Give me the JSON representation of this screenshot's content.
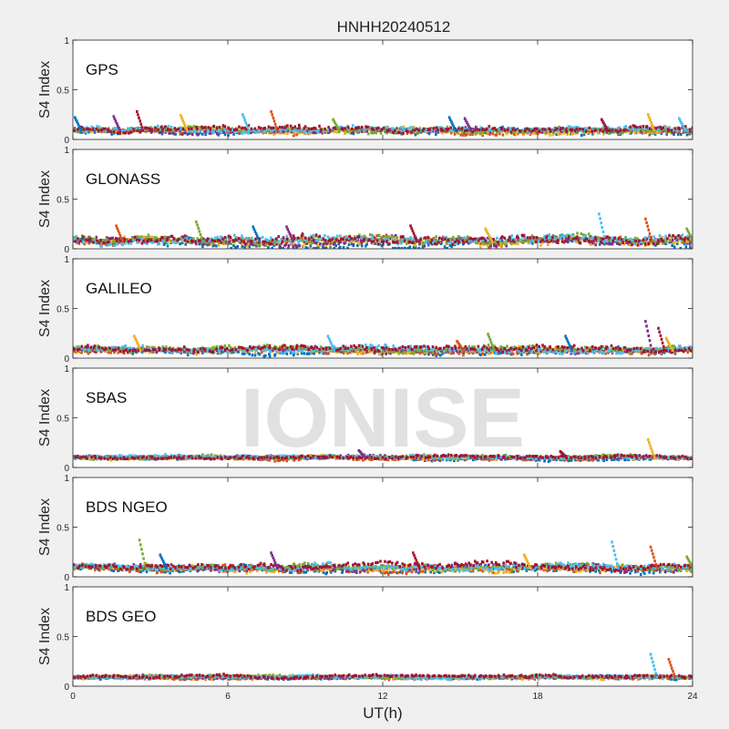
{
  "figure": {
    "title": "HNHH20240512",
    "xlabel": "UT(h)",
    "watermark": "IONISE",
    "background_color": "#f0f0f0",
    "axes_color": "#ffffff"
  },
  "chart_data": {
    "type": "scatter",
    "shared_x": {
      "label": "UT(h)",
      "range": [
        0,
        24
      ],
      "ticks": [
        0,
        6,
        12,
        18,
        24
      ]
    },
    "series_colors": [
      "#0072BD",
      "#D95319",
      "#EDB120",
      "#7E2F8E",
      "#77AC30",
      "#4DBEEE",
      "#A2142F"
    ],
    "panels": [
      {
        "label": "GPS",
        "ylabel": "S4 Index",
        "ylim": [
          0,
          1
        ],
        "yticks": [
          "0",
          "0.5",
          "1"
        ],
        "baseline": 0.09,
        "spread": 0.035,
        "spikes": [
          {
            "x": 0.2,
            "y": 0.22
          },
          {
            "x": 1.7,
            "y": 0.23
          },
          {
            "x": 2.6,
            "y": 0.28
          },
          {
            "x": 4.3,
            "y": 0.24
          },
          {
            "x": 6.7,
            "y": 0.25
          },
          {
            "x": 7.8,
            "y": 0.28
          },
          {
            "x": 10.2,
            "y": 0.2
          },
          {
            "x": 14.7,
            "y": 0.22
          },
          {
            "x": 15.3,
            "y": 0.21
          },
          {
            "x": 20.6,
            "y": 0.2
          },
          {
            "x": 22.4,
            "y": 0.25
          },
          {
            "x": 23.6,
            "y": 0.21
          }
        ]
      },
      {
        "label": "GLONASS",
        "ylabel": "S4 Index",
        "ylim": [
          0,
          1
        ],
        "yticks": [
          "0",
          "0.5",
          "1"
        ],
        "baseline": 0.08,
        "spread": 0.05,
        "spikes": [
          {
            "x": 1.8,
            "y": 0.23
          },
          {
            "x": 4.9,
            "y": 0.27
          },
          {
            "x": 7.1,
            "y": 0.22
          },
          {
            "x": 8.4,
            "y": 0.22
          },
          {
            "x": 13.2,
            "y": 0.23
          },
          {
            "x": 16.1,
            "y": 0.2
          },
          {
            "x": 20.5,
            "y": 0.35
          },
          {
            "x": 22.3,
            "y": 0.3
          },
          {
            "x": 23.9,
            "y": 0.2
          }
        ]
      },
      {
        "label": "GALILEO",
        "ylabel": "S4 Index",
        "ylim": [
          0,
          1
        ],
        "yticks": [
          "0",
          "0.5",
          "1"
        ],
        "baseline": 0.08,
        "spread": 0.035,
        "spikes": [
          {
            "x": 2.5,
            "y": 0.22
          },
          {
            "x": 10.0,
            "y": 0.22
          },
          {
            "x": 15.0,
            "y": 0.17
          },
          {
            "x": 16.2,
            "y": 0.24
          },
          {
            "x": 19.2,
            "y": 0.22
          },
          {
            "x": 22.3,
            "y": 0.37
          },
          {
            "x": 22.8,
            "y": 0.3
          },
          {
            "x": 23.1,
            "y": 0.2
          }
        ]
      },
      {
        "label": "SBAS",
        "ylabel": "S4 Index",
        "ylim": [
          0,
          1
        ],
        "yticks": [
          "0",
          "0.5",
          "1"
        ],
        "baseline": 0.1,
        "spread": 0.02,
        "spikes": [
          {
            "x": 11.2,
            "y": 0.17
          },
          {
            "x": 19.0,
            "y": 0.16
          },
          {
            "x": 22.4,
            "y": 0.28
          }
        ]
      },
      {
        "label": "BDS NGEO",
        "ylabel": "S4 Index",
        "ylim": [
          0,
          1
        ],
        "yticks": [
          "0",
          "0.5",
          "1"
        ],
        "baseline": 0.09,
        "spread": 0.04,
        "spikes": [
          {
            "x": 2.7,
            "y": 0.37
          },
          {
            "x": 3.5,
            "y": 0.22
          },
          {
            "x": 7.8,
            "y": 0.24
          },
          {
            "x": 13.3,
            "y": 0.24
          },
          {
            "x": 17.6,
            "y": 0.22
          },
          {
            "x": 21.0,
            "y": 0.35
          },
          {
            "x": 22.5,
            "y": 0.3
          },
          {
            "x": 23.9,
            "y": 0.2
          }
        ]
      },
      {
        "label": "BDS GEO",
        "ylabel": "S4 Index",
        "ylim": [
          0,
          1
        ],
        "yticks": [
          "0",
          "0.5",
          "1"
        ],
        "baseline": 0.09,
        "spread": 0.018,
        "spikes": [
          {
            "x": 22.5,
            "y": 0.32
          },
          {
            "x": 23.2,
            "y": 0.27
          }
        ]
      }
    ]
  }
}
